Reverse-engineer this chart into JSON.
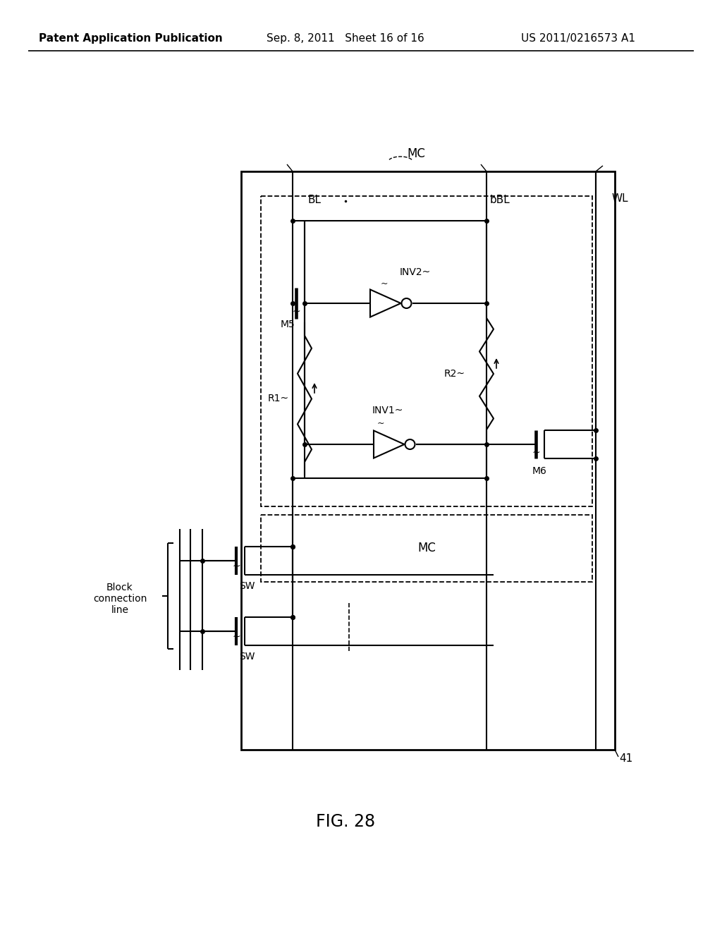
{
  "bg_color": "#ffffff",
  "header_left": "Patent Application Publication",
  "header_mid": "Sep. 8, 2011   Sheet 16 of 16",
  "header_right": "US 2011/0216573 A1",
  "fig_label": "FIG. 28",
  "mc_label": "MC",
  "bl_label": "BL",
  "bbl_label": "bBL",
  "wl_label": "WL",
  "m5_label": "M5",
  "m6_label": "M6",
  "r1_label": "R1",
  "r2_label": "R2",
  "inv1_label": "INV1",
  "inv2_label": "INV2",
  "sw_label": "SW",
  "label_41": "41",
  "block_conn_line1": "Block",
  "block_conn_line2": "connection",
  "block_conn_line3": "line"
}
